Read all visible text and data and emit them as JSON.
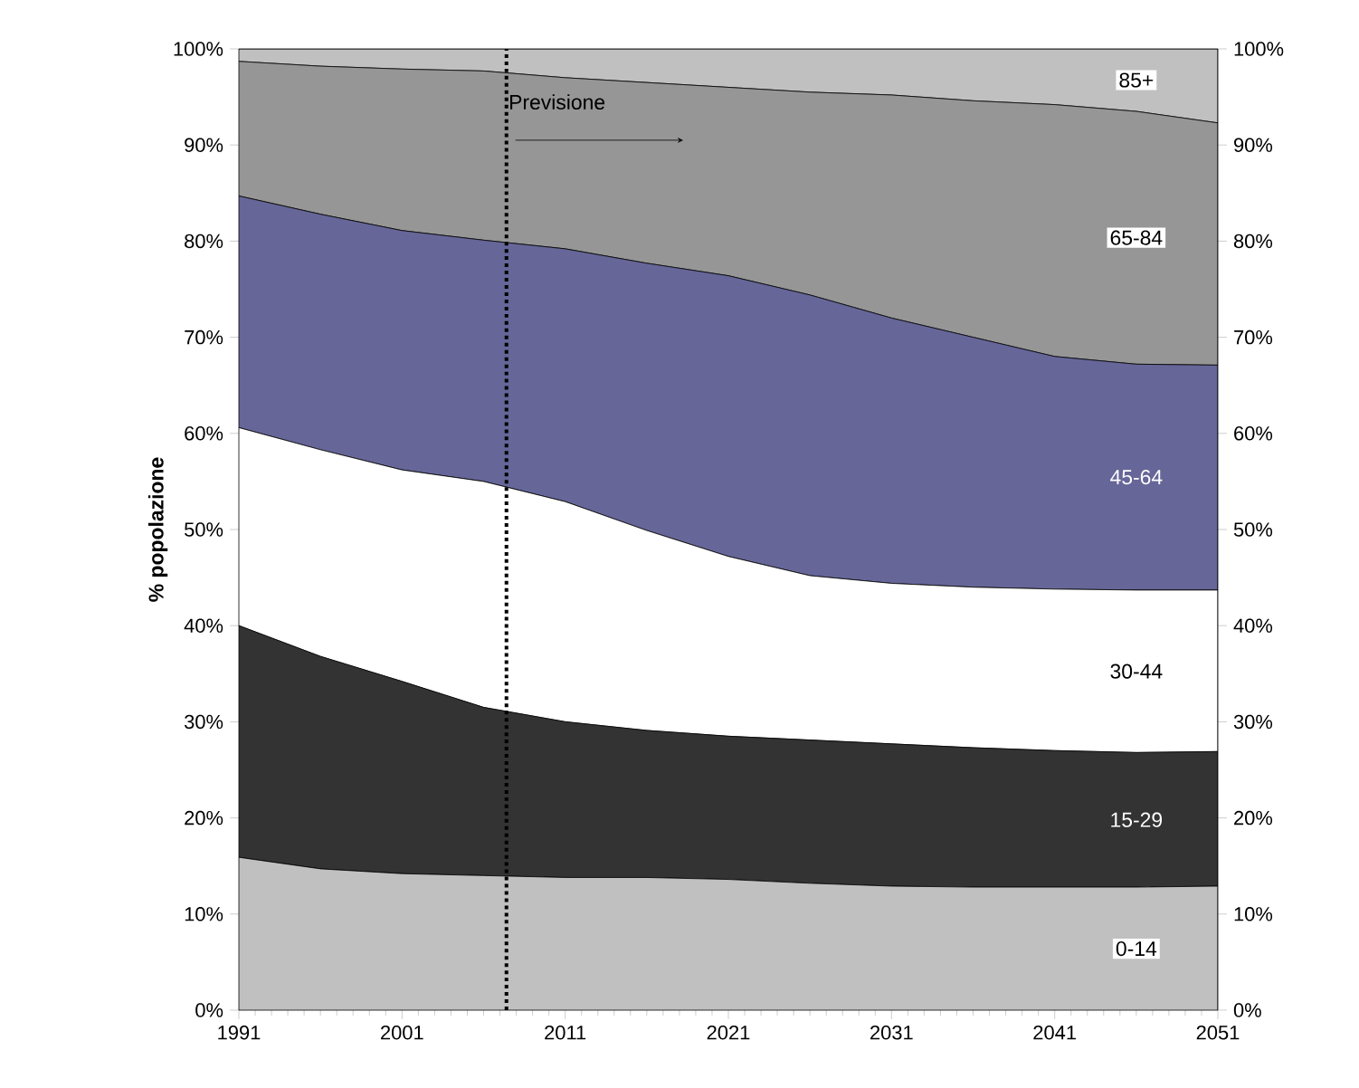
{
  "chart_data": {
    "type": "area",
    "stacked": true,
    "ylabel": "% popolazione",
    "x": [
      1991,
      1996,
      2001,
      2006,
      2011,
      2016,
      2021,
      2026,
      2031,
      2036,
      2041,
      2046,
      2051
    ],
    "xlim": [
      1991,
      2051
    ],
    "xticks": [
      1991,
      2001,
      2011,
      2021,
      2031,
      2041,
      2051
    ],
    "ylim": [
      0,
      100
    ],
    "yticks": [
      {
        "value": 0,
        "label": "0%"
      },
      {
        "value": 10,
        "label": "10%"
      },
      {
        "value": 20,
        "label": "20%"
      },
      {
        "value": 30,
        "label": "30%"
      },
      {
        "value": 40,
        "label": "40%"
      },
      {
        "value": 50,
        "label": "50%"
      },
      {
        "value": 60,
        "label": "60%"
      },
      {
        "value": 70,
        "label": "70%"
      },
      {
        "value": 80,
        "label": "80%"
      },
      {
        "value": 90,
        "label": "90%"
      },
      {
        "value": 100,
        "label": "100%"
      }
    ],
    "y2lim": [
      0,
      100
    ],
    "y2ticks": [
      {
        "value": 0,
        "label": "0%"
      },
      {
        "value": 10,
        "label": "10%"
      },
      {
        "value": 20,
        "label": "20%"
      },
      {
        "value": 30,
        "label": "30%"
      },
      {
        "value": 40,
        "label": "40%"
      },
      {
        "value": 50,
        "label": "50%"
      },
      {
        "value": 60,
        "label": "60%"
      },
      {
        "value": 70,
        "label": "70%"
      },
      {
        "value": 80,
        "label": "80%"
      },
      {
        "value": 90,
        "label": "90%"
      },
      {
        "value": 100,
        "label": "100%"
      }
    ],
    "series": [
      {
        "name": "0-14",
        "color": "#c0c0c0",
        "values": [
          15.9,
          14.7,
          14.2,
          14.0,
          13.8,
          13.8,
          13.6,
          13.2,
          12.9,
          12.8,
          12.8,
          12.8,
          12.9
        ]
      },
      {
        "name": "15-29",
        "color": "#333333",
        "values": [
          24.1,
          22.1,
          20.0,
          17.5,
          16.2,
          15.3,
          14.9,
          14.9,
          14.8,
          14.5,
          14.2,
          14.0,
          14.0
        ]
      },
      {
        "name": "30-44",
        "color": "#ffffff",
        "values": [
          20.6,
          21.5,
          22.0,
          23.5,
          22.9,
          20.8,
          18.7,
          17.1,
          16.7,
          16.7,
          16.8,
          16.9,
          16.8
        ]
      },
      {
        "name": "45-64",
        "color": "#666699",
        "values": [
          24.1,
          24.5,
          24.9,
          25.1,
          26.3,
          27.8,
          29.2,
          29.2,
          27.6,
          26.0,
          24.2,
          23.5,
          23.4
        ]
      },
      {
        "name": "65-84",
        "color": "#969696",
        "values": [
          14.0,
          15.4,
          16.8,
          17.6,
          17.8,
          18.8,
          19.6,
          21.1,
          23.2,
          24.6,
          26.2,
          26.3,
          25.2
        ]
      },
      {
        "name": "85+",
        "color": "#c0c0c0",
        "values": [
          1.3,
          1.8,
          2.1,
          2.3,
          3.0,
          3.5,
          4.0,
          4.5,
          4.8,
          5.4,
          5.8,
          6.5,
          7.7
        ]
      }
    ],
    "ref_lines": [
      {
        "axis": "x",
        "value": 2007.4,
        "line_style": "dotted",
        "label": "Previsione"
      }
    ]
  }
}
